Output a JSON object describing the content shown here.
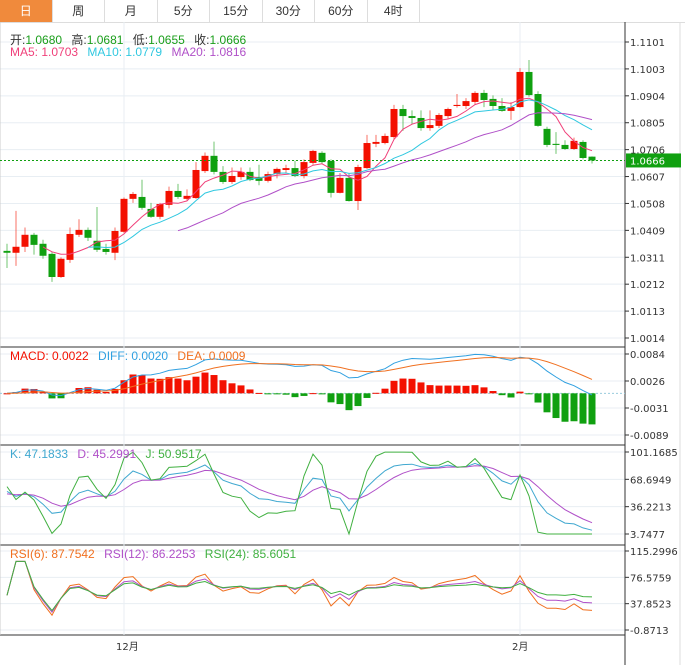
{
  "tabs": [
    "日",
    "周",
    "月",
    "5分",
    "15分",
    "30分",
    "60分",
    "4时"
  ],
  "active_tab": 0,
  "ohlc_header": {
    "open_label": "开:",
    "open": "1.0680",
    "high_label": "高:",
    "high": "1.0681",
    "low_label": "低:",
    "low": "1.0655",
    "close_label": "收:",
    "close": "1.0666"
  },
  "ma_header": {
    "ma5": "MA5: 1.0703",
    "ma10": "MA10: 1.0779",
    "ma20": "MA20: 1.0816"
  },
  "macd_header": {
    "macd": "MACD: 0.0022",
    "diff": "DIFF: 0.0020",
    "dea": "DEA: 0.0009"
  },
  "kdj_header": {
    "k": "K: 47.1833",
    "d": "D: 45.2991",
    "j": "J: 50.9517"
  },
  "rsi_header": {
    "rsi6": "RSI(6): 87.7542",
    "rsi12": "RSI(12): 86.2253",
    "rsi24": "RSI(24): 85.6051"
  },
  "colors": {
    "up": "#f31000",
    "down": "#10a010",
    "ma5": "#f0407a",
    "ma10": "#30c8e0",
    "ma20": "#b050c8",
    "diff": "#30a0e0",
    "dea": "#f07020",
    "k": "#40a8d0",
    "d": "#b050c8",
    "j": "#40b040",
    "rsi6": "#f07020",
    "rsi12": "#b050c8",
    "rsi24": "#40b040",
    "accent": "#f08a3c"
  },
  "current_price": "1.0666",
  "x_labels": [
    {
      "label": "12月",
      "index": 13
    },
    {
      "label": "2月",
      "index": 57
    }
  ],
  "chart_data": {
    "type": "candlestick",
    "price_axis": {
      "ticks": [
        "1.1101",
        "1.1003",
        "1.0904",
        "1.0805",
        "1.0706",
        "1.0607",
        "1.0508",
        "1.0409",
        "1.0311",
        "1.0212",
        "1.0113",
        "1.0014"
      ],
      "range": [
        1.0014,
        1.1101
      ]
    },
    "macd_axis": {
      "ticks": [
        "0.0084",
        "0.0026",
        "-0.0031",
        "-0.0089"
      ],
      "range": [
        -0.0089,
        0.0084
      ]
    },
    "kdj_axis": {
      "ticks": [
        "101.1685",
        "68.6949",
        "36.2213",
        "3.7477"
      ],
      "range": [
        3.7477,
        101.1685
      ]
    },
    "rsi_axis": {
      "ticks": [
        "115.2996",
        "76.5759",
        "37.8523",
        "-0.8713"
      ],
      "range": [
        -0.8713,
        115.2996
      ]
    },
    "candles": [
      [
        1.0334,
        1.036,
        1.0271,
        1.0327
      ],
      [
        1.0327,
        1.0481,
        1.0279,
        1.0349
      ],
      [
        1.0349,
        1.042,
        1.033,
        1.0393
      ],
      [
        1.0393,
        1.04,
        1.032,
        1.0356
      ],
      [
        1.036,
        1.0375,
        1.0305,
        1.0316
      ],
      [
        1.0323,
        1.033,
        1.022,
        1.0238
      ],
      [
        1.0238,
        1.031,
        1.0235,
        1.0305
      ],
      [
        1.0301,
        1.042,
        1.029,
        1.0396
      ],
      [
        1.0393,
        1.045,
        1.0385,
        1.0411
      ],
      [
        1.0411,
        1.042,
        1.037,
        1.0382
      ],
      [
        1.0371,
        1.0495,
        1.033,
        1.0338
      ],
      [
        1.0341,
        1.036,
        1.032,
        1.033
      ],
      [
        1.0327,
        1.042,
        1.03,
        1.0407
      ],
      [
        1.0404,
        1.053,
        1.04,
        1.0525
      ],
      [
        1.0525,
        1.055,
        1.051,
        1.0543
      ],
      [
        1.0532,
        1.0595,
        1.0485,
        1.0492
      ],
      [
        1.0488,
        1.051,
        1.0455,
        1.0459
      ],
      [
        1.0459,
        1.051,
        1.045,
        1.0506
      ],
      [
        1.0503,
        1.057,
        1.049,
        1.0554
      ],
      [
        1.0554,
        1.058,
        1.0525,
        1.0532
      ],
      [
        1.0525,
        1.056,
        1.052,
        1.0536
      ],
      [
        1.0528,
        1.066,
        1.0525,
        1.0631
      ],
      [
        1.0627,
        1.0695,
        1.062,
        1.0683
      ],
      [
        1.0683,
        1.0735,
        1.0615,
        1.0624
      ],
      [
        1.0624,
        1.0645,
        1.058,
        1.0587
      ],
      [
        1.0587,
        1.064,
        1.058,
        1.0609
      ],
      [
        1.0605,
        1.064,
        1.0595,
        1.0624
      ],
      [
        1.0624,
        1.064,
        1.059,
        1.0594
      ],
      [
        1.0605,
        1.065,
        1.0575,
        1.0591
      ],
      [
        1.0591,
        1.0625,
        1.0585,
        1.0616
      ],
      [
        1.0616,
        1.064,
        1.06,
        1.0635
      ],
      [
        1.0631,
        1.065,
        1.062,
        1.0638
      ],
      [
        1.0638,
        1.0665,
        1.0605,
        1.0609
      ],
      [
        1.0609,
        1.067,
        1.06,
        1.066
      ],
      [
        1.0657,
        1.0705,
        1.065,
        1.0701
      ],
      [
        1.0694,
        1.07,
        1.0655,
        1.066
      ],
      [
        1.0664,
        1.067,
        1.053,
        1.0547
      ],
      [
        1.0547,
        1.062,
        1.0545,
        1.0602
      ],
      [
        1.0602,
        1.062,
        1.0515,
        1.0517
      ],
      [
        1.0517,
        1.065,
        1.0484,
        1.0642
      ],
      [
        1.0638,
        1.076,
        1.0635,
        1.073
      ],
      [
        1.0727,
        1.076,
        1.0715,
        1.0734
      ],
      [
        1.073,
        1.0765,
        1.0725,
        1.0756
      ],
      [
        1.0752,
        1.087,
        1.0745,
        1.0855
      ],
      [
        1.0855,
        1.087,
        1.0775,
        1.0829
      ],
      [
        1.0829,
        1.085,
        1.08,
        1.0822
      ],
      [
        1.0822,
        1.085,
        1.0775,
        1.0785
      ],
      [
        1.0785,
        1.085,
        1.0775,
        1.0796
      ],
      [
        1.0793,
        1.084,
        1.0785,
        1.0833
      ],
      [
        1.0829,
        1.086,
        1.082,
        1.0855
      ],
      [
        1.0866,
        1.091,
        1.086,
        1.087
      ],
      [
        1.0866,
        1.0895,
        1.0855,
        1.0884
      ],
      [
        1.0881,
        1.092,
        1.087,
        1.0914
      ],
      [
        1.0914,
        1.0925,
        1.0862,
        1.0888
      ],
      [
        1.0892,
        1.0905,
        1.085,
        1.0866
      ],
      [
        1.0866,
        1.0895,
        1.0845,
        1.0848
      ],
      [
        1.0848,
        1.088,
        1.0815,
        1.0862
      ],
      [
        1.0862,
        1.1005,
        1.086,
        1.0991
      ],
      [
        1.0991,
        1.1035,
        1.09,
        1.0906
      ],
      [
        1.091,
        1.092,
        1.079,
        1.0793
      ],
      [
        1.0782,
        1.079,
        1.0715,
        1.0723
      ],
      [
        1.0727,
        1.077,
        1.069,
        1.0723
      ],
      [
        1.0723,
        1.074,
        1.0705,
        1.0708
      ],
      [
        1.0708,
        1.075,
        1.0705,
        1.0738
      ],
      [
        1.0734,
        1.074,
        1.067,
        1.0675
      ],
      [
        1.068,
        1.0681,
        1.0655,
        1.0666
      ]
    ]
  }
}
